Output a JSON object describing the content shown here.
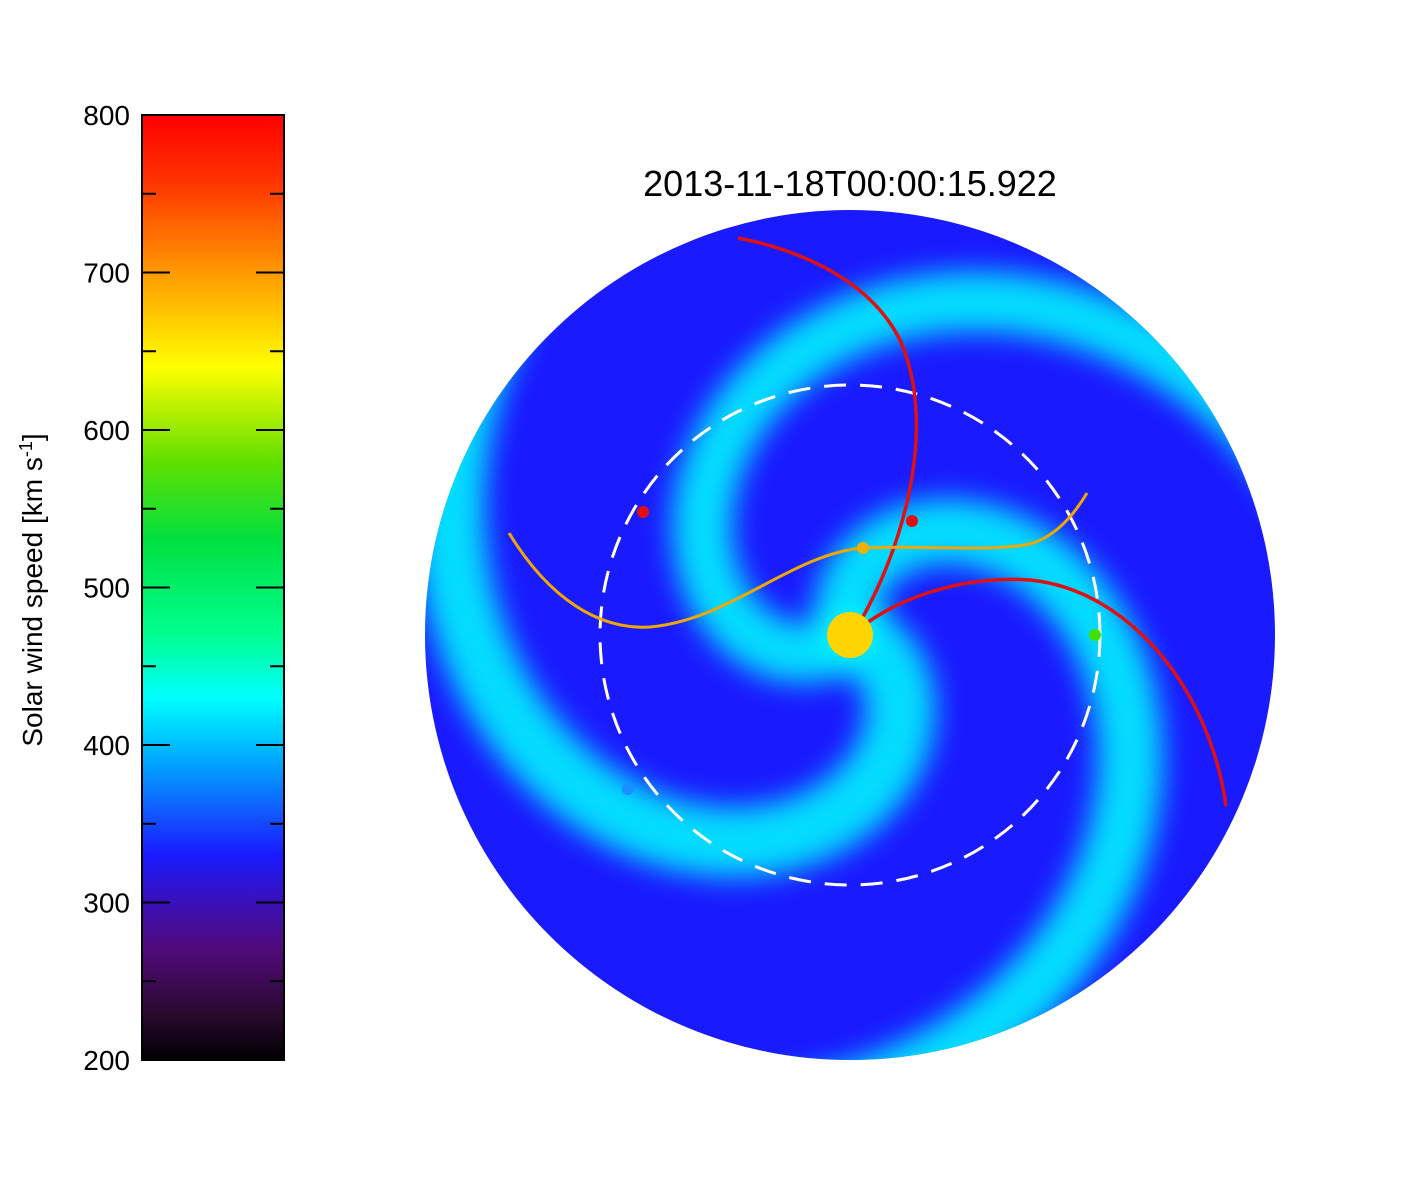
{
  "chart_data": {
    "type": "heatmap",
    "title": "2013-11-18T00:00:15.922",
    "colorbar": {
      "label": "Solar wind speed [km s",
      "label_sup": "-1",
      "label_close": "]",
      "range": [
        200,
        800
      ],
      "ticks": [
        200,
        300,
        400,
        500,
        600,
        700,
        800
      ],
      "minor_ticks": [
        250,
        350,
        450,
        550,
        650,
        750
      ],
      "colormap": [
        {
          "value": 200,
          "color": "#000000"
        },
        {
          "value": 230,
          "color": "#2a0a30"
        },
        {
          "value": 270,
          "color": "#500a7a"
        },
        {
          "value": 300,
          "color": "#3a10b8"
        },
        {
          "value": 330,
          "color": "#1a1aff"
        },
        {
          "value": 360,
          "color": "#1060ff"
        },
        {
          "value": 390,
          "color": "#00a8ff"
        },
        {
          "value": 430,
          "color": "#00ffff"
        },
        {
          "value": 470,
          "color": "#00ff90"
        },
        {
          "value": 530,
          "color": "#00e040"
        },
        {
          "value": 580,
          "color": "#60e000"
        },
        {
          "value": 640,
          "color": "#ffff00"
        },
        {
          "value": 700,
          "color": "#ff9900"
        },
        {
          "value": 760,
          "color": "#ff3000"
        },
        {
          "value": 800,
          "color": "#ff0000"
        }
      ]
    },
    "background_speed": 330,
    "spiral_arms_speed": 430,
    "center_color": "#ffd400",
    "reference_orbit_color": "#ffffff",
    "field_lines": [
      {
        "color": "#e01010"
      },
      {
        "color": "#e01010"
      },
      {
        "color": "#f0a800"
      }
    ],
    "markers": [
      {
        "color": "#e01010"
      },
      {
        "color": "#e01010"
      },
      {
        "color": "#f0b000"
      },
      {
        "color": "#40e000"
      },
      {
        "color": "#1a90ff"
      }
    ]
  }
}
